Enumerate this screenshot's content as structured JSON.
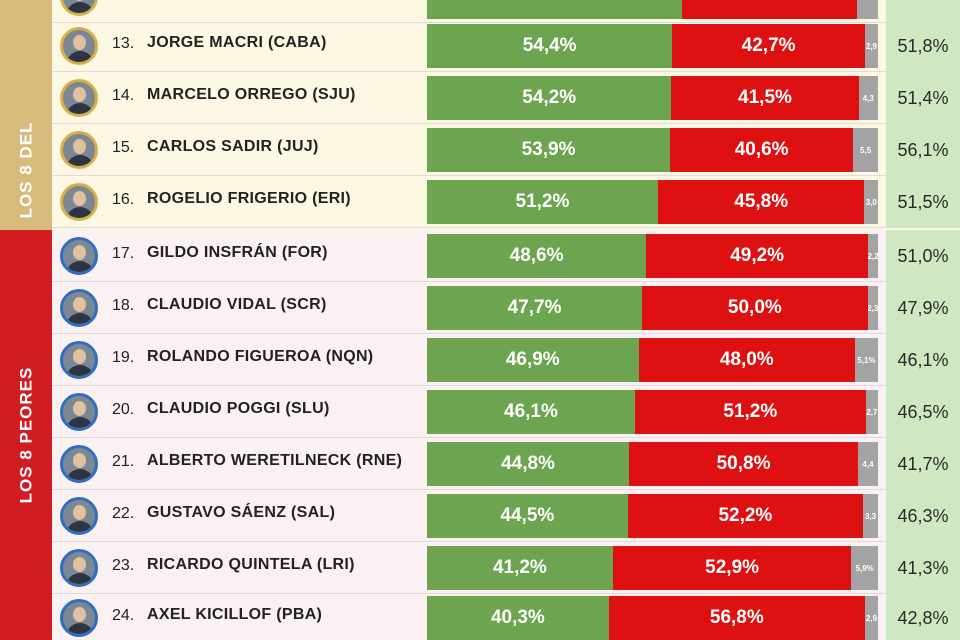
{
  "groups": {
    "top_label": "LOS 8 DEL",
    "bottom_label": "LOS 8 PEORES"
  },
  "colors": {
    "positive": "#6ca44f",
    "negative": "#dd1111",
    "ns_nc": "#a3a3a3",
    "trend_up": "#3fa238",
    "trend_down": "#d9101a",
    "previous_bg": "#cfe8c2"
  },
  "chart_data": {
    "type": "bar",
    "orientation": "horizontal-stacked-100",
    "series": [
      {
        "key": "positive",
        "values": [
          56.5,
          54.4,
          54.2,
          53.9,
          51.2,
          48.6,
          47.7,
          46.9,
          46.1,
          44.8,
          44.5,
          41.2,
          40.3
        ]
      },
      {
        "key": "negative",
        "values": [
          38.9,
          42.7,
          41.5,
          40.6,
          45.8,
          49.2,
          50.0,
          48.0,
          51.2,
          50.8,
          52.2,
          52.9,
          56.8
        ]
      },
      {
        "key": "ns_nc",
        "values": [
          4.6,
          2.9,
          4.3,
          5.5,
          3.0,
          2.2,
          2.3,
          5.1,
          2.7,
          4.4,
          3.3,
          5.9,
          2.9
        ]
      }
    ],
    "rows": [
      {
        "rank": "",
        "name": "",
        "pos_label": "",
        "neg_label": "",
        "ns_label": "",
        "trend": "down",
        "previous": "",
        "avatar": "gold"
      },
      {
        "rank": "13.",
        "name": "JORGE MACRI (CABA)",
        "pos_label": "54,4%",
        "neg_label": "42,7%",
        "ns_label": "2,9",
        "trend": "up",
        "previous": "51,8%",
        "avatar": "gold"
      },
      {
        "rank": "14.",
        "name": "MARCELO ORREGO (SJU)",
        "pos_label": "54,2%",
        "neg_label": "41,5%",
        "ns_label": "4,3",
        "trend": "up",
        "previous": "51,4%",
        "avatar": "gold"
      },
      {
        "rank": "15.",
        "name": "CARLOS SADIR (JUJ)",
        "pos_label": "53,9%",
        "neg_label": "40,6%",
        "ns_label": "5,5",
        "trend": "down",
        "previous": "56,1%",
        "avatar": "gold"
      },
      {
        "rank": "16.",
        "name": "ROGELIO FRIGERIO (ERI)",
        "pos_label": "51,2%",
        "neg_label": "45,8%",
        "ns_label": "3,0",
        "trend": "down",
        "previous": "51,5%",
        "avatar": "gold"
      },
      {
        "rank": "17.",
        "name": "GILDO INSFRÁN (FOR)",
        "pos_label": "48,6%",
        "neg_label": "49,2%",
        "ns_label": "2,2",
        "trend": "down",
        "previous": "51,0%",
        "avatar": "blue"
      },
      {
        "rank": "18.",
        "name": "CLAUDIO VIDAL (SCR)",
        "pos_label": "47,7%",
        "neg_label": "50,0%",
        "ns_label": "2,3",
        "trend": "down",
        "previous": "47,9%",
        "avatar": "blue"
      },
      {
        "rank": "19.",
        "name": "ROLANDO FIGUEROA (NQN)",
        "pos_label": "46,9%",
        "neg_label": "48,0%",
        "ns_label": "5,1%",
        "trend": "up",
        "previous": "46,1%",
        "avatar": "blue"
      },
      {
        "rank": "20.",
        "name": "CLAUDIO POGGI (SLU)",
        "pos_label": "46,1%",
        "neg_label": "51,2%",
        "ns_label": "2,7",
        "trend": "down",
        "previous": "46,5%",
        "avatar": "blue"
      },
      {
        "rank": "21.",
        "name": "ALBERTO WERETILNECK (RNE)",
        "pos_label": "44,8%",
        "neg_label": "50,8%",
        "ns_label": "4,4",
        "trend": "up",
        "previous": "41,7%",
        "avatar": "blue"
      },
      {
        "rank": "22.",
        "name": "GUSTAVO SÁENZ (SAL)",
        "pos_label": "44,5%",
        "neg_label": "52,2%",
        "ns_label": "3,3",
        "trend": "down",
        "previous": "46,3%",
        "avatar": "blue"
      },
      {
        "rank": "23.",
        "name": "RICARDO QUINTELA (LRI)",
        "pos_label": "41,2%",
        "neg_label": "52,9%",
        "ns_label": "5,9%",
        "trend": "down",
        "previous": "41,3%",
        "avatar": "blue"
      },
      {
        "rank": "24.",
        "name": "AXEL KICILLOF (PBA)",
        "pos_label": "40,3%",
        "neg_label": "56,8%",
        "ns_label": "2,9",
        "trend": "down",
        "previous": "42,8%",
        "avatar": "blue"
      }
    ]
  }
}
